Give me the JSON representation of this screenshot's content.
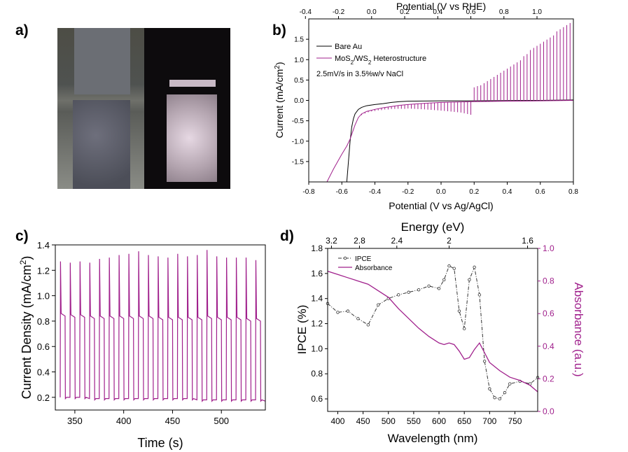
{
  "panels": {
    "a": {
      "letter": "a)"
    },
    "b": {
      "letter": "b)"
    },
    "c": {
      "letter": "c)"
    },
    "d": {
      "letter": "d)"
    }
  },
  "colors": {
    "purple": "#A0208C",
    "black": "#000000",
    "dashdot": "#333333"
  },
  "chart_data": [
    {
      "id": "b",
      "type": "line",
      "xlabel": "Potential (V vs Ag/AgCl)",
      "x2label": "Potential (V vs RHE)",
      "ylabel": "Current (mA/cm",
      "ylabel_sup": "2",
      "ylabel_end": ")",
      "xlim": [
        -0.8,
        0.8
      ],
      "ylim": [
        -2.0,
        2.0
      ],
      "xticks": [
        -0.8,
        -0.6,
        -0.4,
        -0.2,
        0.0,
        0.2,
        0.4,
        0.6,
        0.8
      ],
      "x2ticks": [
        -0.4,
        -0.2,
        0.0,
        0.2,
        0.4,
        0.6,
        0.8,
        1.0
      ],
      "x2_offset": 0.42,
      "yticks": [
        -1.5,
        -1.0,
        -0.5,
        0.0,
        0.5,
        1.0,
        1.5
      ],
      "annotation": "2.5mV/s in 3.5%w/v NaCl",
      "legend": {
        "position": "top-left",
        "entries": [
          {
            "name": "Bare Au",
            "color": "#000000"
          },
          {
            "name": "MoS2/WS2 Heterostructure",
            "color": "#A0208C"
          }
        ]
      },
      "series": [
        {
          "name": "Bare Au",
          "x": [
            -0.57,
            -0.56,
            -0.55,
            -0.54,
            -0.53,
            -0.52,
            -0.5,
            -0.48,
            -0.45,
            -0.4,
            -0.35,
            -0.3,
            -0.25,
            -0.2,
            -0.1,
            0.0,
            0.2,
            0.4,
            0.6,
            0.8
          ],
          "y": [
            -2.0,
            -1.5,
            -1.0,
            -0.65,
            -0.45,
            -0.33,
            -0.22,
            -0.17,
            -0.13,
            -0.1,
            -0.08,
            -0.05,
            -0.03,
            -0.02,
            -0.015,
            -0.01,
            -0.01,
            -0.005,
            0.0,
            0.01
          ]
        },
        {
          "name": "MoS2/WS2 Heterostructure",
          "x": [
            -0.69,
            -0.65,
            -0.6,
            -0.57,
            -0.55,
            -0.52,
            -0.5,
            -0.48,
            -0.45,
            -0.4,
            -0.35,
            -0.3,
            -0.25,
            -0.2,
            -0.1,
            0.0,
            0.2,
            0.4,
            0.6,
            0.8
          ],
          "y": [
            -2.0,
            -1.68,
            -1.32,
            -1.12,
            -0.95,
            -0.6,
            -0.42,
            -0.33,
            -0.27,
            -0.22,
            -0.18,
            -0.15,
            -0.12,
            -0.1,
            -0.07,
            -0.05,
            -0.03,
            -0.02,
            -0.01,
            0.0
          ],
          "spikes": {
            "start": -0.48,
            "end": 0.8,
            "step": 0.02,
            "heights": [
              0.03,
              0.03,
              0.03,
              0.03,
              0.04,
              0.04,
              0.05,
              0.05,
              0.06,
              0.06,
              0.07,
              0.08,
              0.09,
              0.1,
              0.1,
              0.11,
              0.12,
              0.13,
              0.14,
              0.15,
              0.16,
              0.17,
              0.18,
              0.19,
              0.2,
              0.21,
              0.22,
              0.23,
              0.24,
              0.25,
              0.26,
              0.28,
              0.3,
              0.32,
              0.35,
              0.38,
              0.4,
              0.45,
              0.5,
              0.55,
              0.6,
              0.65,
              0.7,
              0.75,
              0.8,
              0.85,
              0.9,
              0.95,
              1.0,
              1.1,
              1.15,
              1.25,
              1.3,
              1.35,
              1.4,
              1.45,
              1.5,
              1.55,
              1.6,
              1.7,
              1.75,
              1.8,
              1.85,
              1.9,
              1.95
            ]
          }
        }
      ]
    },
    {
      "id": "c",
      "type": "line",
      "xlabel": "Time (s)",
      "ylabel": "Current Density (mA/cm",
      "ylabel_sup": "2",
      "ylabel_end": ")",
      "xlim": [
        330,
        545
      ],
      "ylim": [
        0.1,
        1.4
      ],
      "xticks": [
        350,
        400,
        450,
        500
      ],
      "yticks": [
        0.2,
        0.4,
        0.6,
        0.8,
        1.0,
        1.2,
        1.4
      ],
      "series": [
        {
          "name": "",
          "pulse_on": [
            335,
            345,
            355,
            365,
            375,
            385,
            395,
            405,
            415,
            425,
            435,
            445,
            455,
            465,
            475,
            485,
            495,
            505,
            515,
            525,
            535
          ],
          "pulse_width": 5,
          "peak": [
            1.27,
            1.26,
            1.27,
            1.26,
            1.29,
            1.3,
            1.32,
            1.33,
            1.35,
            1.32,
            1.31,
            1.3,
            1.33,
            1.31,
            1.32,
            1.36,
            1.31,
            1.3,
            1.3,
            1.3,
            1.28
          ],
          "plateau": [
            0.84,
            0.83,
            0.83,
            0.82,
            0.82,
            0.82,
            0.82,
            0.82,
            0.82,
            0.82,
            0.81,
            0.81,
            0.81,
            0.81,
            0.81,
            0.82,
            0.81,
            0.81,
            0.81,
            0.8,
            0.8
          ],
          "dark": [
            0.2,
            0.2,
            0.2,
            0.19,
            0.19,
            0.19,
            0.19,
            0.19,
            0.19,
            0.19,
            0.19,
            0.19,
            0.19,
            0.19,
            0.18,
            0.18,
            0.18,
            0.18,
            0.18,
            0.18,
            0.18
          ],
          "end_x": 545,
          "end_y": 0.17
        }
      ]
    },
    {
      "id": "d",
      "type": "line",
      "xlabel": "Wavelength (nm)",
      "x2label": "Energy (eV)",
      "ylabel": "IPCE (%)",
      "y2label": "Absorbance (a.u.)",
      "xlim": [
        380,
        795
      ],
      "ylim": [
        0.5,
        1.8
      ],
      "y2lim": [
        0.0,
        1.0
      ],
      "xticks": [
        400,
        450,
        500,
        550,
        600,
        650,
        700,
        750
      ],
      "x2ticks": [
        3.2,
        2.8,
        2.4,
        2.0,
        1.6
      ],
      "yticks": [
        0.6,
        0.8,
        1.0,
        1.2,
        1.4,
        1.6,
        1.8
      ],
      "y2ticks": [
        0.0,
        0.2,
        0.4,
        0.6,
        0.8,
        1.0
      ],
      "legend": {
        "position": "top-left",
        "entries": [
          {
            "name": "IPCE",
            "color": "#333333"
          },
          {
            "name": "Absorbance",
            "color": "#A0208C"
          }
        ]
      },
      "series": [
        {
          "name": "IPCE",
          "axis": "left",
          "x": [
            380,
            400,
            420,
            440,
            460,
            480,
            500,
            520,
            540,
            560,
            580,
            600,
            610,
            620,
            630,
            640,
            650,
            660,
            670,
            680,
            690,
            700,
            710,
            720,
            730,
            740,
            760,
            780,
            795
          ],
          "y": [
            1.36,
            1.29,
            1.3,
            1.24,
            1.19,
            1.35,
            1.4,
            1.43,
            1.45,
            1.47,
            1.5,
            1.48,
            1.55,
            1.66,
            1.64,
            1.3,
            1.16,
            1.55,
            1.65,
            1.43,
            0.9,
            0.68,
            0.61,
            0.6,
            0.65,
            0.72,
            0.74,
            0.72,
            0.77
          ]
        },
        {
          "name": "Absorbance",
          "axis": "right",
          "x": [
            380,
            400,
            420,
            440,
            460,
            480,
            500,
            520,
            540,
            560,
            580,
            600,
            610,
            620,
            630,
            640,
            650,
            660,
            670,
            680,
            690,
            700,
            720,
            740,
            760,
            780,
            795
          ],
          "y": [
            0.86,
            0.84,
            0.82,
            0.8,
            0.78,
            0.74,
            0.7,
            0.63,
            0.57,
            0.51,
            0.46,
            0.42,
            0.41,
            0.42,
            0.41,
            0.37,
            0.32,
            0.33,
            0.38,
            0.42,
            0.36,
            0.3,
            0.25,
            0.21,
            0.19,
            0.16,
            0.12
          ]
        }
      ]
    }
  ]
}
